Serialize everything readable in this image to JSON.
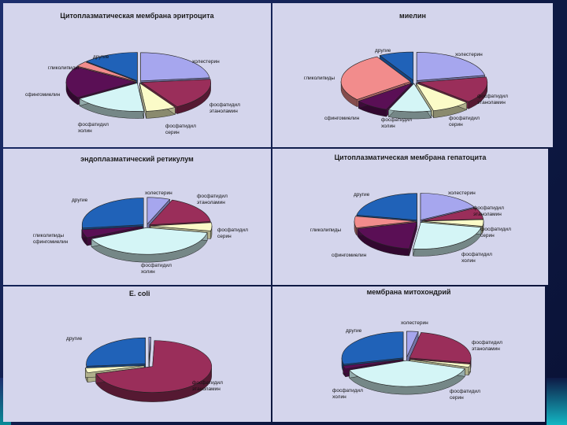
{
  "colors": {
    "cholesterol": "#a6a6ee",
    "pe": "#9a2e5a",
    "ps": "#fbfbc8",
    "pc": "#d4f5f6",
    "sphingo": "#5a0f55",
    "glyco": "#f28c8c",
    "other": "#2062b8"
  },
  "chart_data": [
    {
      "type": "pie",
      "title": "Цитоплазматическая мембрана эритроцита",
      "slices": [
        {
          "label": "холестерин",
          "value": 23,
          "color_key": "cholesterol"
        },
        {
          "label": "фосфатидил этаноламин",
          "value": 18,
          "color_key": "pe"
        },
        {
          "label": "фосфатидил серин",
          "value": 7,
          "color_key": "ps"
        },
        {
          "label": "фосфатидил холин",
          "value": 17,
          "color_key": "pc"
        },
        {
          "label": "сфингомиелин",
          "value": 18,
          "color_key": "sphingo"
        },
        {
          "label": "гликолипиды",
          "value": 3,
          "color_key": "glyco"
        },
        {
          "label": "другие",
          "value": 13,
          "color_key": "other"
        }
      ]
    },
    {
      "type": "pie",
      "title": "миелин",
      "slices": [
        {
          "label": "холестерин",
          "value": 22,
          "color_key": "cholesterol"
        },
        {
          "label": "фосфатидил этаноламин",
          "value": 15,
          "color_key": "pe"
        },
        {
          "label": "фосфатидил серин",
          "value": 9,
          "color_key": "ps"
        },
        {
          "label": "фосфатидил холин",
          "value": 10,
          "color_key": "pc"
        },
        {
          "label": "сфингомиелин",
          "value": 8,
          "color_key": "sphingo"
        },
        {
          "label": "гликолипиды",
          "value": 28,
          "color_key": "glyco"
        },
        {
          "label": "другие",
          "value": 8,
          "color_key": "other"
        }
      ]
    },
    {
      "type": "pie",
      "title": "эндоплазматический ретикулум",
      "slices": [
        {
          "label": "холестерин",
          "value": 6,
          "color_key": "cholesterol"
        },
        {
          "label": "фосфатидил этаноламин",
          "value": 17,
          "color_key": "pe"
        },
        {
          "label": "фосфатидил серин",
          "value": 5,
          "color_key": "ps"
        },
        {
          "label": "фосфатидил холин",
          "value": 40,
          "color_key": "pc"
        },
        {
          "label": "гликолипиды сфингомиелин",
          "value": 5,
          "color_key": "sphingo"
        },
        {
          "label": "другие",
          "value": 27,
          "color_key": "other"
        }
      ]
    },
    {
      "type": "pie",
      "title": "Цитоплазматическая мембрана гепатоцита",
      "slices": [
        {
          "label": "холестерин",
          "value": 17,
          "color_key": "cholesterol"
        },
        {
          "label": "фосфатидил этаноламин",
          "value": 7,
          "color_key": "pe"
        },
        {
          "label": "фосфатидил серин",
          "value": 4,
          "color_key": "ps"
        },
        {
          "label": "фосфатидил холин",
          "value": 24,
          "color_key": "pc"
        },
        {
          "label": "сфингомиелин",
          "value": 19,
          "color_key": "sphingo"
        },
        {
          "label": "гликолипиды",
          "value": 7,
          "color_key": "glyco"
        },
        {
          "label": "другие",
          "value": 22,
          "color_key": "other"
        }
      ]
    },
    {
      "type": "pie",
      "title": "E. coli",
      "slices": [
        {
          "label": "",
          "value": 0.5,
          "color_key": "cholesterol"
        },
        {
          "label": "фосфатидил этаноламин",
          "value": 70,
          "color_key": "pe"
        },
        {
          "label": "",
          "value": 3,
          "color_key": "ps"
        },
        {
          "label": "другие",
          "value": 26.5,
          "color_key": "other"
        }
      ]
    },
    {
      "type": "pie",
      "title": "мембрана митохондрий",
      "slices": [
        {
          "label": "холестерин",
          "value": 3,
          "color_key": "cholesterol"
        },
        {
          "label": "фосфатидил этаноламин",
          "value": 25,
          "color_key": "pe"
        },
        {
          "label": "фосфатидил серин",
          "value": 2,
          "color_key": "ps"
        },
        {
          "label": "фосфатидил холин",
          "value": 39,
          "color_key": "pc"
        },
        {
          "label": "",
          "value": 2,
          "color_key": "sphingo"
        },
        {
          "label": "другие",
          "value": 29,
          "color_key": "other"
        }
      ]
    }
  ]
}
